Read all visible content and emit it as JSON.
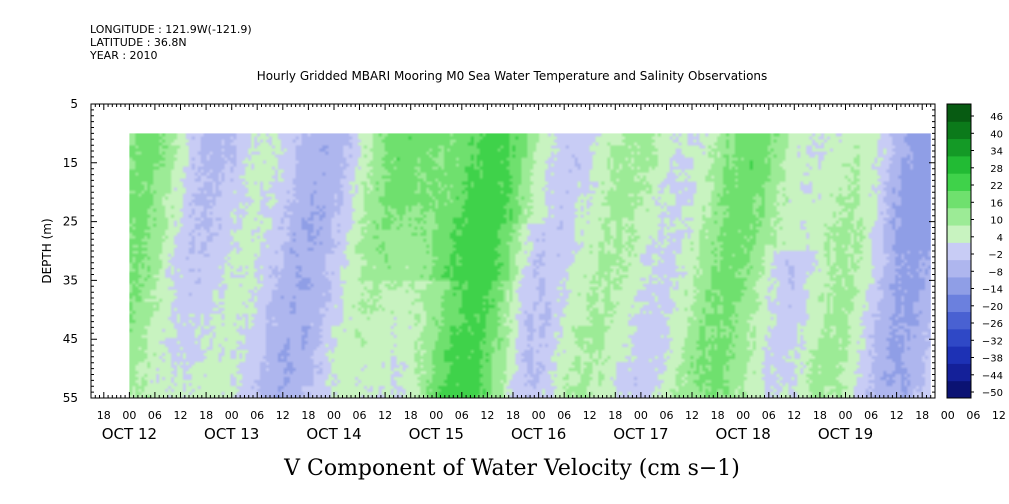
{
  "header": {
    "longitude": "LONGITUDE : 121.9W(-121.9)",
    "latitude": "LATITUDE : 36.8N",
    "year": "YEAR : 2010"
  },
  "chart_data": {
    "type": "heatmap",
    "title": "Hourly Gridded MBARI Mooring M0 Sea Water Temperature and Salinity Observations",
    "xlabel": "V Component of Water Velocity (cm s−1)",
    "ylabel": "DEPTH (m)",
    "y_axis": {
      "range": [
        5,
        55
      ],
      "inverted": true,
      "ticks": [
        5,
        15,
        25,
        35,
        45,
        55
      ]
    },
    "x_axis": {
      "start": "2010-10-11T15:00",
      "end": "2010-10-19T21:00",
      "hour_ticks": [
        "18",
        "00",
        "06",
        "12",
        "18",
        "00",
        "06",
        "12",
        "18",
        "00",
        "06",
        "12",
        "18",
        "00",
        "06",
        "12",
        "18",
        "00",
        "06",
        "12",
        "18",
        "00",
        "06",
        "12",
        "18",
        "00",
        "06",
        "12",
        "18",
        "00",
        "06",
        "12",
        "18",
        "00",
        "06",
        "12"
      ],
      "day_labels": [
        "OCT 12",
        "OCT 13",
        "OCT 14",
        "OCT 15",
        "OCT 16",
        "OCT 17",
        "OCT 18",
        "OCT 19"
      ]
    },
    "data_extent": {
      "time_start": "2010-10-12T00:00",
      "time_end": "2010-10-19T20:00",
      "depth_min": 10,
      "depth_max": 55
    },
    "colorbar": {
      "levels": [
        -50,
        -44,
        -38,
        -32,
        -26,
        -20,
        -14,
        -8,
        -2,
        4,
        10,
        16,
        22,
        28,
        34,
        40,
        46
      ],
      "labels": [
        "46",
        "40",
        "34",
        "28",
        "22",
        "16",
        "10",
        "4",
        "−2",
        "−8",
        "−14",
        "−20",
        "−26",
        "−32",
        "−38",
        "−44",
        "−50"
      ],
      "colors": [
        "#0b1273",
        "#142099",
        "#1d31b5",
        "#2f48c6",
        "#4961d2",
        "#6b80de",
        "#8f9ee6",
        "#aeb6ee",
        "#c8ccf5",
        "#c8f3c0",
        "#9ceb96",
        "#6fe06e",
        "#3fd24a",
        "#22bb34",
        "#149a26",
        "#0b7a1a",
        "#075b12"
      ]
    },
    "grid": false,
    "legend": "colorbar-right"
  }
}
